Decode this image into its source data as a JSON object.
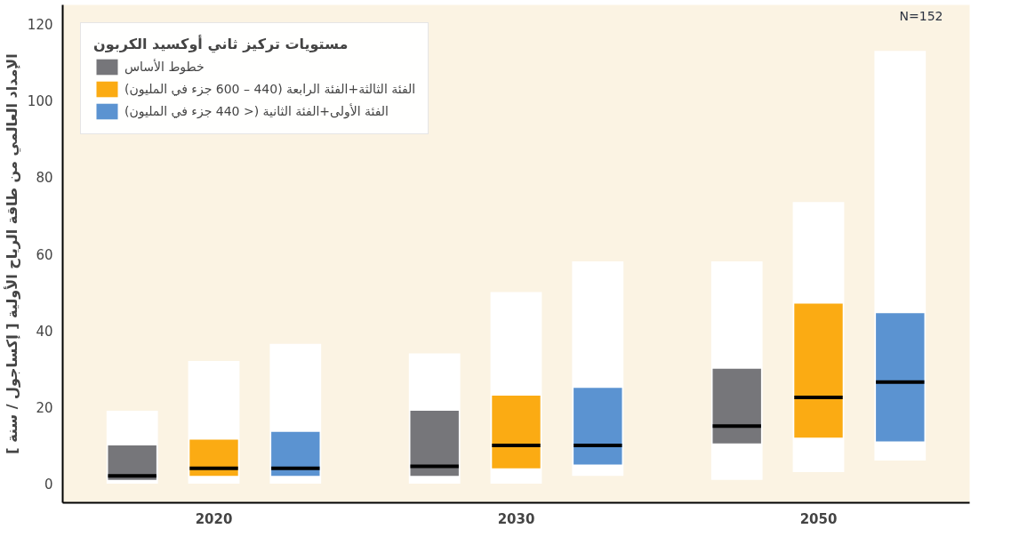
{
  "chart_data": {
    "type": "box",
    "categories": [
      "2020",
      "2030",
      "2050"
    ],
    "ylabel": "الإمداد العالمي من طاقة الرياح الأولية [ إكساجول / سنة ]",
    "legend_title": "مستويات تركيز ثاني أوكسيد الكربون",
    "series": [
      {
        "name": "خطوط الأساس",
        "color": "#76767a",
        "boxes": [
          {
            "low": 0,
            "q1": 1,
            "median": 2,
            "q3": 10,
            "high": 19
          },
          {
            "low": 0,
            "q1": 2,
            "median": 4.5,
            "q3": 19,
            "high": 34
          },
          {
            "low": 1,
            "q1": 10.5,
            "median": 15,
            "q3": 30,
            "high": 58
          }
        ]
      },
      {
        "name": "الفئة الثالثة+الفئة الرابعة (440 – 600 جزء في المليون)",
        "color": "#fbab13",
        "boxes": [
          {
            "low": 0,
            "q1": 2,
            "median": 4,
            "q3": 11.5,
            "high": 32
          },
          {
            "low": 0,
            "q1": 4,
            "median": 10,
            "q3": 23,
            "high": 50
          },
          {
            "low": 3,
            "q1": 12,
            "median": 22.5,
            "q3": 47,
            "high": 73.5
          }
        ]
      },
      {
        "name": "الفئة الأولى+الفئة الثانية (< 440 جزء في المليون)",
        "color": "#5b93d1",
        "boxes": [
          {
            "low": 0,
            "q1": 2,
            "median": 4,
            "q3": 13.5,
            "high": 36.5
          },
          {
            "low": 2,
            "q1": 5,
            "median": 10,
            "q3": 25,
            "high": 58
          },
          {
            "low": 6,
            "q1": 11,
            "median": 26.5,
            "q3": 44.5,
            "high": 113
          }
        ]
      }
    ],
    "ylim": [
      -5,
      125
    ],
    "yticks": [
      0,
      20,
      40,
      60,
      80,
      100,
      120
    ],
    "annotations": [
      "N=152"
    ],
    "grid": false,
    "legend": "top left"
  }
}
